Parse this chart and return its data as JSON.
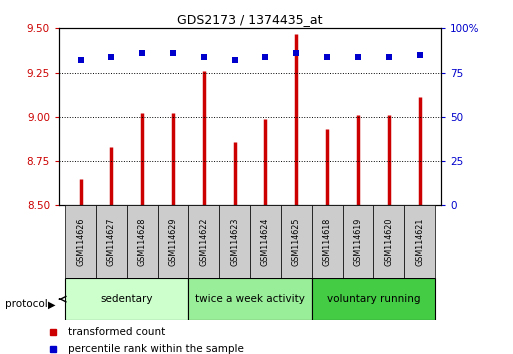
{
  "title": "GDS2173 / 1374435_at",
  "samples": [
    "GSM114626",
    "GSM114627",
    "GSM114628",
    "GSM114629",
    "GSM114622",
    "GSM114623",
    "GSM114624",
    "GSM114625",
    "GSM114618",
    "GSM114619",
    "GSM114620",
    "GSM114621"
  ],
  "red_values": [
    8.65,
    8.83,
    9.02,
    9.02,
    9.26,
    8.86,
    8.99,
    9.47,
    8.93,
    9.01,
    9.01,
    9.11
  ],
  "blue_values": [
    82,
    84,
    86,
    86,
    84,
    82,
    84,
    86,
    84,
    84,
    84,
    85
  ],
  "ylim_left": [
    8.5,
    9.5
  ],
  "ylim_right": [
    0,
    100
  ],
  "yticks_left": [
    8.5,
    8.75,
    9.0,
    9.25,
    9.5
  ],
  "yticks_right": [
    0,
    25,
    50,
    75,
    100
  ],
  "groups": [
    {
      "label": "sedentary",
      "start": 0,
      "end": 3,
      "color": "#ccffcc"
    },
    {
      "label": "twice a week activity",
      "start": 4,
      "end": 7,
      "color": "#99ee99"
    },
    {
      "label": "voluntary running",
      "start": 8,
      "end": 11,
      "color": "#44cc44"
    }
  ],
  "red_color": "#cc0000",
  "blue_color": "#0000cc",
  "grid_color": "#000000",
  "tick_label_color_left": "#cc0000",
  "tick_label_color_right": "#0000cc",
  "xlabel_box_color": "#cccccc",
  "protocol_label": "protocol",
  "legend_red": "transformed count",
  "legend_blue": "percentile rank within the sample"
}
